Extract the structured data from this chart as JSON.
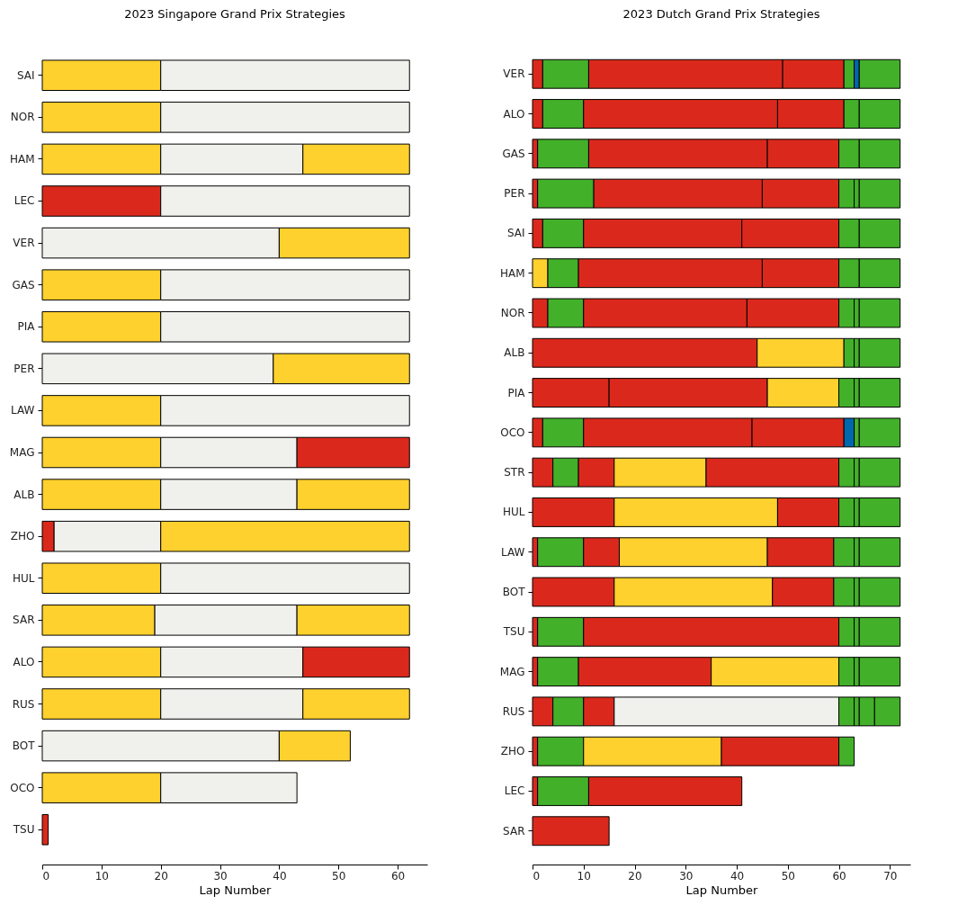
{
  "chart_data": [
    {
      "type": "bar",
      "orientation": "horizontal",
      "stacked": true,
      "title": "2023 Singapore Grand Prix Strategies",
      "xlabel": "Lap Number",
      "xlim": [
        0,
        65
      ],
      "xticks": [
        0,
        10,
        20,
        30,
        40,
        50,
        60
      ],
      "grid": false,
      "categories": [
        "SAI",
        "NOR",
        "HAM",
        "LEC",
        "VER",
        "GAS",
        "PIA",
        "PER",
        "LAW",
        "MAG",
        "ALB",
        "ZHO",
        "HUL",
        "SAR",
        "ALO",
        "RUS",
        "BOT",
        "OCO",
        "TSU"
      ],
      "series": [
        {
          "values": [
            20,
            20,
            20,
            20,
            40,
            20,
            20,
            39,
            20,
            20,
            20,
            2,
            20,
            19,
            20,
            20,
            40,
            20,
            1
          ],
          "colors": [
            "#ffd12e",
            "#ffd12e",
            "#ffd12e",
            "#da291c",
            "#f0f0ec",
            "#ffd12e",
            "#ffd12e",
            "#f0f0ec",
            "#ffd12e",
            "#ffd12e",
            "#ffd12e",
            "#da291c",
            "#ffd12e",
            "#ffd12e",
            "#ffd12e",
            "#ffd12e",
            "#f0f0ec",
            "#ffd12e",
            "#da291c"
          ]
        },
        {
          "values": [
            42,
            42,
            24,
            42,
            22,
            42,
            42,
            23,
            42,
            23,
            23,
            18,
            42,
            24,
            24,
            24,
            12,
            23,
            null
          ],
          "colors": [
            "#f0f0ec",
            "#f0f0ec",
            "#f0f0ec",
            "#f0f0ec",
            "#ffd12e",
            "#f0f0ec",
            "#f0f0ec",
            "#ffd12e",
            "#f0f0ec",
            "#f0f0ec",
            "#f0f0ec",
            "#f0f0ec",
            "#f0f0ec",
            "#f0f0ec",
            "#f0f0ec",
            "#f0f0ec",
            "#ffd12e",
            "#f0f0ec",
            null
          ]
        },
        {
          "values": [
            null,
            null,
            18,
            null,
            null,
            null,
            null,
            null,
            null,
            19,
            19,
            42,
            null,
            19,
            18,
            18,
            null,
            null,
            null
          ],
          "colors": [
            null,
            null,
            "#ffd12e",
            null,
            null,
            null,
            null,
            null,
            null,
            "#da291c",
            "#ffd12e",
            "#ffd12e",
            null,
            "#ffd12e",
            "#da291c",
            "#ffd12e",
            null,
            null,
            null
          ]
        }
      ]
    },
    {
      "type": "bar",
      "orientation": "horizontal",
      "stacked": true,
      "title": "2023 Dutch Grand Prix Strategies",
      "xlabel": "Lap Number",
      "xlim": [
        0,
        74
      ],
      "xticks": [
        0,
        10,
        20,
        30,
        40,
        50,
        60,
        70
      ],
      "grid": false,
      "categories": [
        "VER",
        "ALO",
        "GAS",
        "PER",
        "SAI",
        "HAM",
        "NOR",
        "ALB",
        "PIA",
        "OCO",
        "STR",
        "HUL",
        "LAW",
        "BOT",
        "TSU",
        "MAG",
        "RUS",
        "ZHO",
        "LEC",
        "SAR"
      ],
      "series": [
        {
          "values": [
            2,
            2,
            1,
            1,
            2,
            3,
            3,
            44,
            15,
            2,
            4,
            16,
            1,
            16,
            1,
            1,
            4,
            1,
            1,
            15
          ],
          "colors": [
            "#da291c",
            "#da291c",
            "#da291c",
            "#da291c",
            "#da291c",
            "#ffd12e",
            "#da291c",
            "#da291c",
            "#da291c",
            "#da291c",
            "#da291c",
            "#da291c",
            "#da291c",
            "#da291c",
            "#da291c",
            "#da291c",
            "#da291c",
            "#da291c",
            "#da291c",
            "#da291c"
          ]
        },
        {
          "values": [
            9,
            8,
            10,
            11,
            8,
            6,
            7,
            17,
            31,
            8,
            5,
            32,
            9,
            31,
            9,
            8,
            6,
            9,
            10,
            null
          ],
          "colors": [
            "#43b02a",
            "#43b02a",
            "#43b02a",
            "#43b02a",
            "#43b02a",
            "#43b02a",
            "#43b02a",
            "#ffd12e",
            "#da291c",
            "#43b02a",
            "#43b02a",
            "#ffd12e",
            "#43b02a",
            "#ffd12e",
            "#43b02a",
            "#43b02a",
            "#43b02a",
            "#43b02a",
            "#43b02a",
            null
          ]
        },
        {
          "values": [
            38,
            38,
            35,
            33,
            31,
            36,
            32,
            2,
            14,
            33,
            7,
            12,
            7,
            12,
            50,
            26,
            6,
            27,
            30,
            null
          ],
          "colors": [
            "#da291c",
            "#da291c",
            "#da291c",
            "#da291c",
            "#da291c",
            "#da291c",
            "#da291c",
            "#43b02a",
            "#ffd12e",
            "#da291c",
            "#da291c",
            "#da291c",
            "#da291c",
            "#da291c",
            "#da291c",
            "#da291c",
            "#da291c",
            "#ffd12e",
            "#da291c",
            null
          ]
        },
        {
          "values": [
            12,
            13,
            14,
            15,
            19,
            15,
            18,
            1,
            3,
            18,
            18,
            3,
            29,
            4,
            3,
            25,
            44,
            23,
            null,
            null
          ],
          "colors": [
            "#da291c",
            "#da291c",
            "#da291c",
            "#da291c",
            "#da291c",
            "#da291c",
            "#da291c",
            "#43b02a",
            "#43b02a",
            "#da291c",
            "#ffd12e",
            "#43b02a",
            "#ffd12e",
            "#43b02a",
            "#43b02a",
            "#ffd12e",
            "#f0f0ec",
            "#da291c",
            null,
            null
          ]
        },
        {
          "values": [
            2,
            3,
            4,
            3,
            4,
            4,
            3,
            8,
            1,
            2,
            26,
            1,
            13,
            1,
            1,
            3,
            3,
            3,
            null,
            null
          ],
          "colors": [
            "#43b02a",
            "#43b02a",
            "#43b02a",
            "#43b02a",
            "#43b02a",
            "#43b02a",
            "#43b02a",
            "#43b02a",
            "#43b02a",
            "#0067ad",
            "#da291c",
            "#43b02a",
            "#da291c",
            "#43b02a",
            "#43b02a",
            "#43b02a",
            "#43b02a",
            "#43b02a",
            null,
            null
          ]
        },
        {
          "values": [
            1,
            8,
            8,
            1,
            8,
            8,
            1,
            null,
            8,
            1,
            3,
            8,
            4,
            8,
            8,
            1,
            1,
            null,
            null,
            null
          ],
          "colors": [
            "#0067ad",
            "#43b02a",
            "#43b02a",
            "#43b02a",
            "#43b02a",
            "#43b02a",
            "#43b02a",
            null,
            "#43b02a",
            "#43b02a",
            "#43b02a",
            "#43b02a",
            "#43b02a",
            "#43b02a",
            "#43b02a",
            "#43b02a",
            "#43b02a",
            null,
            null,
            null
          ]
        },
        {
          "values": [
            8,
            null,
            null,
            8,
            null,
            null,
            8,
            null,
            null,
            8,
            1,
            null,
            1,
            null,
            null,
            8,
            3,
            null,
            null,
            null
          ],
          "colors": [
            "#43b02a",
            null,
            null,
            "#43b02a",
            null,
            null,
            "#43b02a",
            null,
            null,
            "#43b02a",
            "#43b02a",
            null,
            "#43b02a",
            null,
            null,
            "#43b02a",
            "#43b02a",
            null,
            null,
            null
          ]
        },
        {
          "values": [
            null,
            null,
            null,
            null,
            null,
            null,
            null,
            null,
            null,
            null,
            8,
            null,
            8,
            null,
            null,
            null,
            5,
            null,
            null,
            null
          ],
          "colors": [
            null,
            null,
            null,
            null,
            null,
            null,
            null,
            null,
            null,
            null,
            "#43b02a",
            null,
            "#43b02a",
            null,
            null,
            null,
            "#43b02a",
            null,
            null,
            null
          ]
        }
      ]
    }
  ]
}
